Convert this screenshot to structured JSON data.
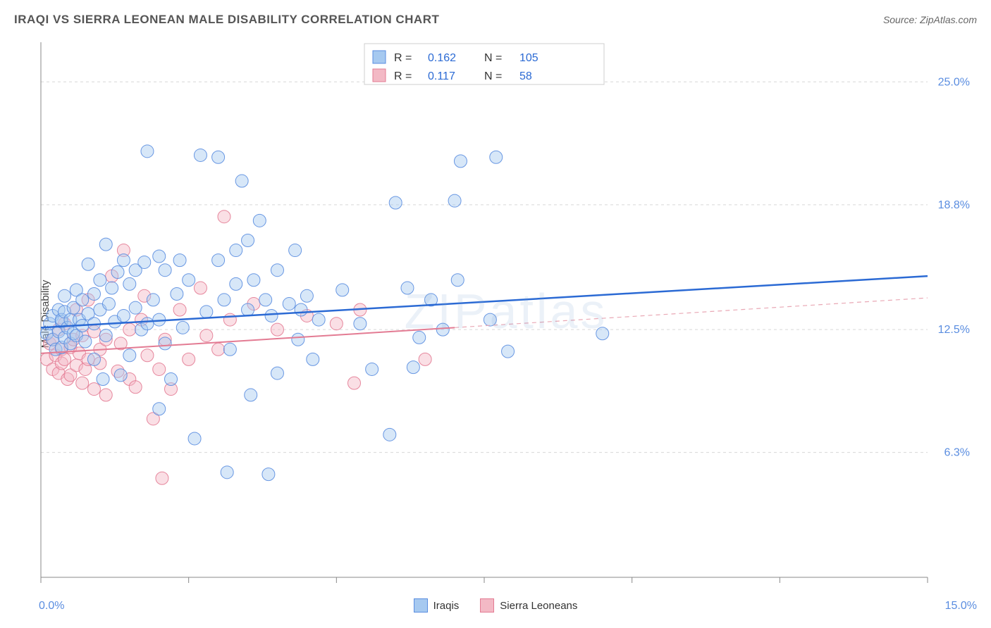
{
  "title": "IRAQI VS SIERRA LEONEAN MALE DISABILITY CORRELATION CHART",
  "source": "Source: ZipAtlas.com",
  "watermark": "ZIPatlas",
  "yaxis_label": "Male Disability",
  "chart": {
    "type": "scatter",
    "background_color": "#ffffff",
    "grid_color": "#d7d7d7",
    "grid_dash": "4,4",
    "axis_line_color": "#888888",
    "tick_color": "#888888",
    "xlim": [
      0,
      15
    ],
    "ylim": [
      0,
      27
    ],
    "x_tick_positions": [
      0,
      2.5,
      5,
      7.5,
      10,
      12.5,
      15
    ],
    "y_gridlines": [
      6.3,
      12.5,
      18.8,
      25.0
    ],
    "y_tick_labels": [
      "6.3%",
      "12.5%",
      "18.8%",
      "25.0%"
    ],
    "y_tick_color": "#5a8de0",
    "y_tick_fontsize": 16,
    "x_min_label": "0.0%",
    "x_max_label": "15.0%",
    "x_tick_color": "#5a8de0",
    "marker_radius": 9,
    "marker_opacity": 0.45,
    "marker_stroke_opacity": 0.9,
    "series": [
      {
        "name": "Iraqis",
        "color_fill": "#a6c9f0",
        "color_stroke": "#5a8de0",
        "trend": {
          "x1": 0,
          "y1": 12.6,
          "x2": 15,
          "y2": 15.2,
          "color": "#2b6ad4",
          "width": 2.5,
          "dash": "none"
        },
        "points": [
          [
            0.1,
            12.3
          ],
          [
            0.15,
            12.8
          ],
          [
            0.2,
            12.0
          ],
          [
            0.2,
            13.2
          ],
          [
            0.25,
            11.5
          ],
          [
            0.3,
            12.4
          ],
          [
            0.3,
            13.5
          ],
          [
            0.35,
            12.9
          ],
          [
            0.35,
            11.6
          ],
          [
            0.35,
            13.0
          ],
          [
            0.4,
            12.1
          ],
          [
            0.4,
            13.4
          ],
          [
            0.4,
            14.2
          ],
          [
            0.45,
            12.6
          ],
          [
            0.5,
            13.0
          ],
          [
            0.5,
            11.8
          ],
          [
            0.55,
            13.6
          ],
          [
            0.55,
            12.3
          ],
          [
            0.6,
            12.2
          ],
          [
            0.6,
            14.5
          ],
          [
            0.65,
            13.0
          ],
          [
            0.7,
            12.7
          ],
          [
            0.7,
            14.0
          ],
          [
            0.75,
            11.9
          ],
          [
            0.8,
            13.3
          ],
          [
            0.8,
            15.8
          ],
          [
            0.9,
            12.8
          ],
          [
            0.9,
            14.3
          ],
          [
            1.0,
            13.5
          ],
          [
            1.0,
            15.0
          ],
          [
            1.1,
            12.2
          ],
          [
            1.1,
            16.8
          ],
          [
            1.15,
            13.8
          ],
          [
            1.2,
            14.6
          ],
          [
            1.25,
            12.9
          ],
          [
            1.3,
            15.4
          ],
          [
            1.35,
            10.2
          ],
          [
            1.4,
            13.2
          ],
          [
            1.4,
            16.0
          ],
          [
            1.5,
            14.8
          ],
          [
            1.5,
            11.2
          ],
          [
            1.6,
            13.6
          ],
          [
            1.6,
            15.5
          ],
          [
            1.7,
            12.5
          ],
          [
            1.75,
            15.9
          ],
          [
            1.8,
            21.5
          ],
          [
            1.8,
            12.8
          ],
          [
            1.9,
            14.0
          ],
          [
            2.0,
            13.0
          ],
          [
            2.0,
            16.2
          ],
          [
            2.1,
            15.5
          ],
          [
            2.1,
            11.8
          ],
          [
            2.2,
            10.0
          ],
          [
            2.3,
            14.3
          ],
          [
            2.35,
            16.0
          ],
          [
            2.4,
            12.6
          ],
          [
            2.5,
            15.0
          ],
          [
            2.6,
            7.0
          ],
          [
            2.7,
            21.3
          ],
          [
            2.8,
            13.4
          ],
          [
            3.0,
            21.2
          ],
          [
            3.0,
            16.0
          ],
          [
            3.1,
            14.0
          ],
          [
            3.15,
            5.3
          ],
          [
            3.2,
            11.5
          ],
          [
            3.3,
            14.8
          ],
          [
            3.3,
            16.5
          ],
          [
            3.4,
            20.0
          ],
          [
            3.5,
            17.0
          ],
          [
            3.5,
            13.5
          ],
          [
            3.55,
            9.2
          ],
          [
            3.6,
            15.0
          ],
          [
            3.7,
            18.0
          ],
          [
            3.8,
            14.0
          ],
          [
            3.85,
            5.2
          ],
          [
            3.9,
            13.2
          ],
          [
            4.0,
            15.5
          ],
          [
            4.0,
            10.3
          ],
          [
            4.2,
            13.8
          ],
          [
            4.3,
            16.5
          ],
          [
            4.35,
            12.0
          ],
          [
            4.4,
            13.5
          ],
          [
            4.5,
            14.2
          ],
          [
            4.6,
            11.0
          ],
          [
            5.1,
            14.5
          ],
          [
            5.4,
            12.8
          ],
          [
            5.6,
            10.5
          ],
          [
            5.9,
            7.2
          ],
          [
            6.0,
            18.9
          ],
          [
            6.2,
            14.6
          ],
          [
            6.3,
            10.6
          ],
          [
            6.4,
            12.1
          ],
          [
            6.6,
            14.0
          ],
          [
            6.8,
            12.5
          ],
          [
            7.0,
            19.0
          ],
          [
            7.05,
            15.0
          ],
          [
            7.1,
            21.0
          ],
          [
            7.6,
            13.0
          ],
          [
            7.9,
            11.4
          ],
          [
            9.5,
            12.3
          ],
          [
            7.7,
            21.2
          ],
          [
            4.7,
            13.0
          ],
          [
            1.05,
            10.0
          ],
          [
            0.9,
            11.0
          ],
          [
            2.0,
            8.5
          ]
        ]
      },
      {
        "name": "Sierra Leoneans",
        "color_fill": "#f3b9c5",
        "color_stroke": "#e37b93",
        "trend_solid": {
          "x1": 0,
          "y1": 11.3,
          "x2": 7.0,
          "y2": 12.6,
          "color": "#e37b93",
          "width": 2,
          "dash": "none"
        },
        "trend_dash": {
          "x1": 7.0,
          "y1": 12.6,
          "x2": 15,
          "y2": 14.1,
          "color": "#e9a8b5",
          "width": 1.2,
          "dash": "6,5"
        },
        "points": [
          [
            0.1,
            11.0
          ],
          [
            0.15,
            11.8
          ],
          [
            0.2,
            10.5
          ],
          [
            0.2,
            12.0
          ],
          [
            0.25,
            11.2
          ],
          [
            0.3,
            10.3
          ],
          [
            0.3,
            12.5
          ],
          [
            0.35,
            11.5
          ],
          [
            0.35,
            10.8
          ],
          [
            0.4,
            11.0
          ],
          [
            0.4,
            12.8
          ],
          [
            0.45,
            10.0
          ],
          [
            0.5,
            11.6
          ],
          [
            0.5,
            10.2
          ],
          [
            0.55,
            12.0
          ],
          [
            0.6,
            10.7
          ],
          [
            0.6,
            13.5
          ],
          [
            0.65,
            11.3
          ],
          [
            0.7,
            9.8
          ],
          [
            0.7,
            12.2
          ],
          [
            0.75,
            10.5
          ],
          [
            0.8,
            11.0
          ],
          [
            0.8,
            14.0
          ],
          [
            0.9,
            9.5
          ],
          [
            0.9,
            12.4
          ],
          [
            1.0,
            10.8
          ],
          [
            1.0,
            11.5
          ],
          [
            1.1,
            9.2
          ],
          [
            1.1,
            12.0
          ],
          [
            1.2,
            15.2
          ],
          [
            1.3,
            10.4
          ],
          [
            1.35,
            11.8
          ],
          [
            1.4,
            16.5
          ],
          [
            1.5,
            10.0
          ],
          [
            1.5,
            12.5
          ],
          [
            1.6,
            9.6
          ],
          [
            1.7,
            13.0
          ],
          [
            1.75,
            14.2
          ],
          [
            1.8,
            11.2
          ],
          [
            1.9,
            8.0
          ],
          [
            2.0,
            10.5
          ],
          [
            2.05,
            5.0
          ],
          [
            2.1,
            12.0
          ],
          [
            2.2,
            9.5
          ],
          [
            2.35,
            13.5
          ],
          [
            2.5,
            11.0
          ],
          [
            2.7,
            14.6
          ],
          [
            2.8,
            12.2
          ],
          [
            3.0,
            11.5
          ],
          [
            3.1,
            18.2
          ],
          [
            3.2,
            13.0
          ],
          [
            3.6,
            13.8
          ],
          [
            4.0,
            12.5
          ],
          [
            4.5,
            13.2
          ],
          [
            5.0,
            12.8
          ],
          [
            5.3,
            9.8
          ],
          [
            5.4,
            13.5
          ],
          [
            6.5,
            11.0
          ]
        ]
      }
    ],
    "legend_box": {
      "border_color": "#cfcfcf",
      "bg": "#ffffff",
      "label_color": "#333333",
      "value_color": "#2b6ad4",
      "fontsize": 16,
      "rows": [
        {
          "swatch_fill": "#a6c9f0",
          "swatch_stroke": "#5a8de0",
          "R": "0.162",
          "N": "105"
        },
        {
          "swatch_fill": "#f3b9c5",
          "swatch_stroke": "#e37b93",
          "R": "0.117",
          "N": "58"
        }
      ]
    },
    "footer_legend": [
      {
        "label": "Iraqis",
        "swatch_fill": "#a6c9f0",
        "swatch_stroke": "#5a8de0"
      },
      {
        "label": "Sierra Leoneans",
        "swatch_fill": "#f3b9c5",
        "swatch_stroke": "#e37b93"
      }
    ]
  }
}
